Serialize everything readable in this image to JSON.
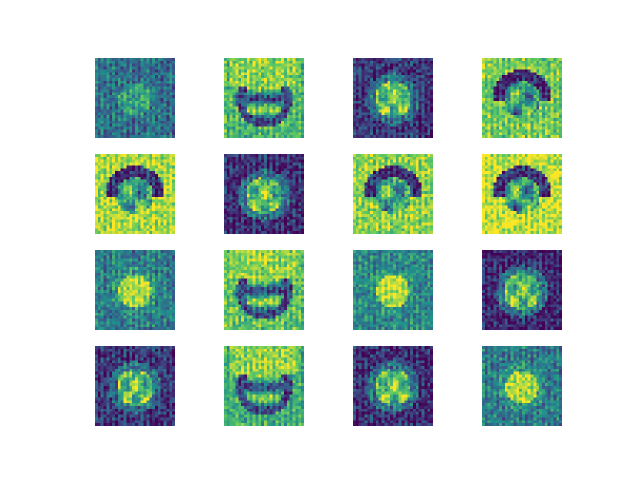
{
  "figure": {
    "rows": 4,
    "cols": 4,
    "image_resolution": 28,
    "colormap": "viridis",
    "colormap_stops": [
      "#440154",
      "#3b528b",
      "#21918c",
      "#5ec962",
      "#fde725"
    ],
    "background": "#ffffff",
    "tiles": [
      {
        "row": 0,
        "col": 0,
        "content": "generated-face-sample",
        "style": "dark-noisy",
        "bg_level": 0.35
      },
      {
        "row": 0,
        "col": 1,
        "content": "generated-face-sample",
        "style": "bright-hair",
        "bg_level": 0.65
      },
      {
        "row": 0,
        "col": 2,
        "content": "generated-face-sample",
        "style": "dark-bright-face",
        "bg_level": 0.15
      },
      {
        "row": 0,
        "col": 3,
        "content": "generated-face-sample",
        "style": "bright-dark-arch",
        "bg_level": 0.75
      },
      {
        "row": 1,
        "col": 0,
        "content": "generated-face-sample",
        "style": "bright-dark-arch",
        "bg_level": 0.85
      },
      {
        "row": 1,
        "col": 1,
        "content": "generated-face-sample",
        "style": "dark-bright-face",
        "bg_level": 0.12
      },
      {
        "row": 1,
        "col": 2,
        "content": "generated-face-sample",
        "style": "bright-dark-arch",
        "bg_level": 0.8
      },
      {
        "row": 1,
        "col": 3,
        "content": "generated-face-sample",
        "style": "bright-dark-arch",
        "bg_level": 0.9
      },
      {
        "row": 2,
        "col": 0,
        "content": "generated-face-sample",
        "style": "teal-bright-face",
        "bg_level": 0.4
      },
      {
        "row": 2,
        "col": 1,
        "content": "generated-face-sample",
        "style": "bright-hair",
        "bg_level": 0.7
      },
      {
        "row": 2,
        "col": 2,
        "content": "generated-face-sample",
        "style": "teal-bright-face",
        "bg_level": 0.45
      },
      {
        "row": 2,
        "col": 3,
        "content": "generated-face-sample",
        "style": "dark-bright-face",
        "bg_level": 0.1
      },
      {
        "row": 3,
        "col": 0,
        "content": "generated-face-sample",
        "style": "dark-bright-face",
        "bg_level": 0.15
      },
      {
        "row": 3,
        "col": 1,
        "content": "generated-face-sample",
        "style": "bright-hair",
        "bg_level": 0.6
      },
      {
        "row": 3,
        "col": 2,
        "content": "generated-face-sample",
        "style": "dark-bright-face",
        "bg_level": 0.12
      },
      {
        "row": 3,
        "col": 3,
        "content": "generated-face-sample",
        "style": "teal-bright-face",
        "bg_level": 0.4
      }
    ]
  }
}
